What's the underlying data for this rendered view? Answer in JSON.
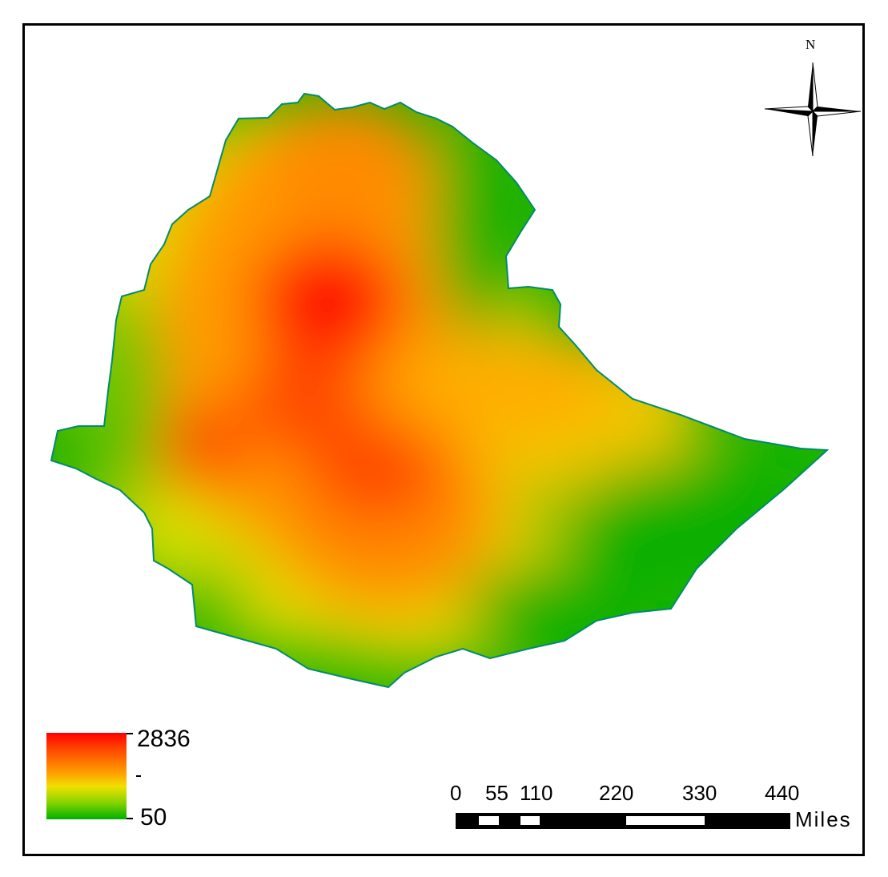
{
  "north_arrow": {
    "label": "N"
  },
  "legend": {
    "max_label": "2836",
    "min_label": "50",
    "max_value": 2836,
    "min_value": 50,
    "colors": [
      "#ff0000",
      "#ff9a00",
      "#f0e000",
      "#00b000"
    ]
  },
  "scale_bar": {
    "ticks": [
      "0",
      "55",
      "110",
      "220",
      "330",
      "440"
    ],
    "unit": "Miles"
  }
}
